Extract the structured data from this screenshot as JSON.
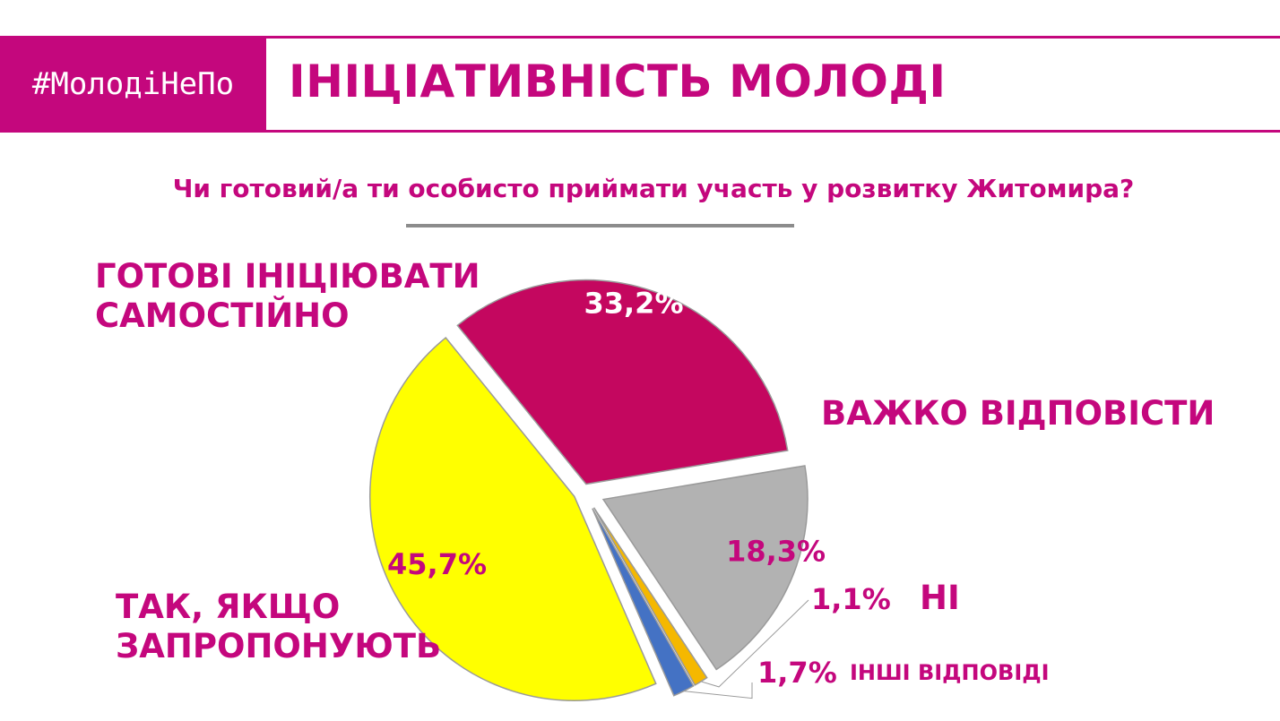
{
  "header": {
    "hashtag": "#МолодіНеПо",
    "title": "ІНІЦІАТИВНІСТЬ МОЛОДІ"
  },
  "chart_data": {
    "type": "pie",
    "title": "Чи готовий/а ти особисто приймати участь у розвитку Житомира?",
    "slices": [
      {
        "label_lines": [
          "ГОТОВІ ІНІЦІЮВАТИ",
          "САМОСТІЙНО"
        ],
        "value": 33.2,
        "value_label": "33,2%",
        "color": "#c4075f"
      },
      {
        "label_lines": [
          "ВАЖКО ВІДПОВІСТИ"
        ],
        "value": 18.3,
        "value_label": "18,3%",
        "color": "#b2b2b2"
      },
      {
        "label_lines": [
          "НІ"
        ],
        "value": 1.1,
        "value_label": "1,1%",
        "color": "#f5b800"
      },
      {
        "label_lines": [
          "ІНШІ ВІДПОВІДІ"
        ],
        "value": 1.7,
        "value_label": "1,7%",
        "color": "#4472c4"
      },
      {
        "label_lines": [
          "ТАК, ЯКЩО",
          "ЗАПРОПОНУЮТЬ"
        ],
        "value": 45.7,
        "value_label": "45,7%",
        "color": "#ffff00"
      }
    ]
  },
  "colors": {
    "accent": "#c4077d",
    "value_text_light": "#ffffff",
    "value_text_accent": "#c4077d"
  }
}
